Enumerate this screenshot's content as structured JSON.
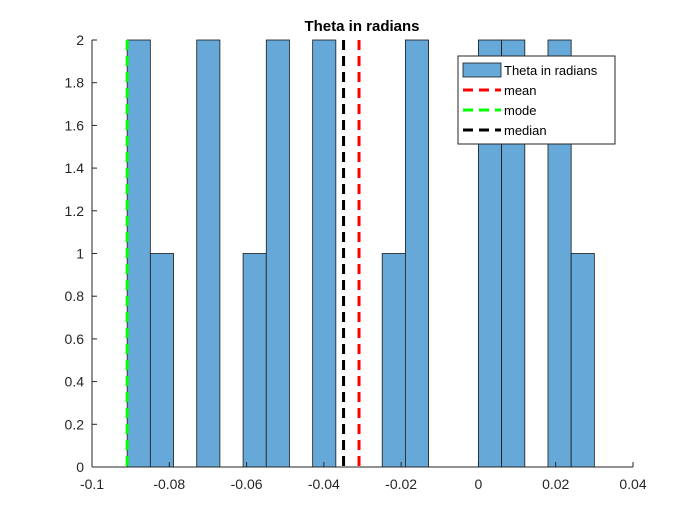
{
  "chart_data": {
    "type": "bar",
    "title": "Theta in radians",
    "xlabel": "",
    "ylabel": "",
    "xlim": [
      -0.1,
      0.04
    ],
    "ylim": [
      0,
      2
    ],
    "xticks": [
      -0.1,
      -0.08,
      -0.06,
      -0.04,
      -0.02,
      0,
      0.02,
      0.04
    ],
    "xtick_labels": [
      "-0.1",
      "-0.08",
      "-0.06",
      "-0.04",
      "-0.02",
      "0",
      "0.02",
      "0.04"
    ],
    "yticks": [
      0,
      0.2,
      0.4,
      0.6,
      0.8,
      1,
      1.2,
      1.4,
      1.6,
      1.8,
      2
    ],
    "ytick_labels": [
      "0",
      "0.2",
      "0.4",
      "0.6",
      "0.8",
      "1",
      "1.2",
      "1.4",
      "1.6",
      "1.8",
      "2"
    ],
    "grid": false,
    "legend_position": "top-right",
    "bar_color": "#66a8d8",
    "bars": [
      {
        "x0": -0.0909,
        "x1": -0.0849,
        "count": 2
      },
      {
        "x0": -0.0849,
        "x1": -0.0789,
        "count": 1
      },
      {
        "x0": -0.0729,
        "x1": -0.0669,
        "count": 2
      },
      {
        "x0": -0.0609,
        "x1": -0.0549,
        "count": 1
      },
      {
        "x0": -0.0549,
        "x1": -0.0489,
        "count": 2
      },
      {
        "x0": -0.0429,
        "x1": -0.0369,
        "count": 2
      },
      {
        "x0": -0.0249,
        "x1": -0.0189,
        "count": 1
      },
      {
        "x0": -0.0189,
        "x1": -0.0129,
        "count": 2
      },
      {
        "x0": 0.0,
        "x1": 0.006,
        "count": 2
      },
      {
        "x0": 0.006,
        "x1": 0.012,
        "count": 2
      },
      {
        "x0": 0.018,
        "x1": 0.024,
        "count": 2
      },
      {
        "x0": 0.024,
        "x1": 0.03,
        "count": 1
      }
    ],
    "lines": [
      {
        "name": "mean",
        "x": -0.0309,
        "color": "#ff0000"
      },
      {
        "name": "mode",
        "x": -0.0909,
        "color": "#00ff00"
      },
      {
        "name": "median",
        "x": -0.0349,
        "color": "#000000"
      }
    ],
    "legend": [
      {
        "label": "Theta in radians",
        "kind": "patch",
        "color": "#66a8d8"
      },
      {
        "label": "mean",
        "kind": "line",
        "color": "#ff0000"
      },
      {
        "label": "mode",
        "kind": "line",
        "color": "#00ff00"
      },
      {
        "label": "median",
        "kind": "line",
        "color": "#000000"
      }
    ]
  }
}
